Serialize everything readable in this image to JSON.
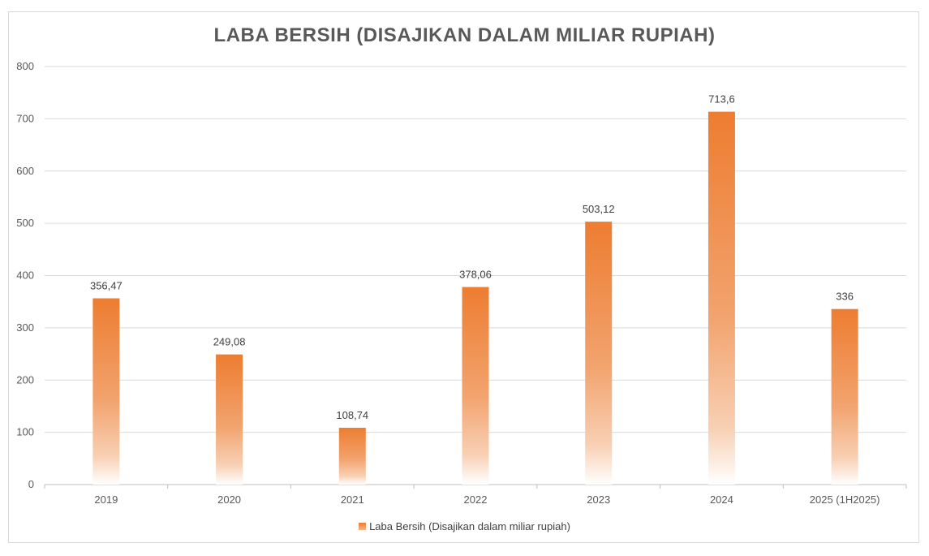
{
  "chart_data": {
    "type": "bar",
    "title": "LABA BERSIH (DISAJIKAN DALAM MILIAR RUPIAH)",
    "categories": [
      "2019",
      "2020",
      "2021",
      "2022",
      "2023",
      "2024",
      "2025 (1H2025)"
    ],
    "series": [
      {
        "name": "Laba Bersih (Disajikan dalam miliar rupiah)",
        "values": [
          356.47,
          249.08,
          108.74,
          378.06,
          503.12,
          713.6,
          336
        ],
        "data_labels": [
          "356,47",
          "249,08",
          "108,74",
          "378,06",
          "503,12",
          "713,6",
          "336"
        ],
        "color": "#ed7d31"
      }
    ],
    "ylim": [
      0,
      800
    ],
    "yticks": [
      0,
      100,
      200,
      300,
      400,
      500,
      600,
      700,
      800
    ],
    "grid": true,
    "legend_position": "bottom"
  }
}
